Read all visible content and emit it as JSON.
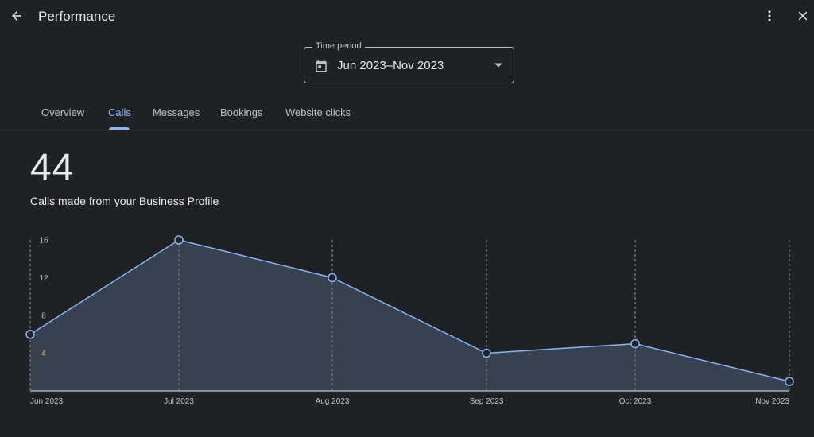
{
  "header": {
    "title": "Performance",
    "back_icon": "arrow-back-icon",
    "more_icon": "more-vert-icon",
    "close_icon": "close-icon"
  },
  "time_period": {
    "label": "Time period",
    "value": "Jun 2023–Nov 2023",
    "icon": "calendar-icon"
  },
  "tabs": [
    {
      "label": "Overview",
      "active": false
    },
    {
      "label": "Calls",
      "active": true
    },
    {
      "label": "Messages",
      "active": false
    },
    {
      "label": "Bookings",
      "active": false
    },
    {
      "label": "Website clicks",
      "active": false
    }
  ],
  "metric": {
    "value": "44",
    "description": "Calls made from your Business Profile"
  },
  "colors": {
    "background": "#202124",
    "accent": "#8ab4f8",
    "area_fill": "#3c4657"
  },
  "chart_data": {
    "type": "area",
    "categories": [
      "Jun 2023",
      "Jul 2023",
      "Aug 2023",
      "Sep 2023",
      "Oct 2023",
      "Nov 2023"
    ],
    "values": [
      6,
      16,
      12,
      4,
      5,
      1
    ],
    "yticks": [
      "4",
      "8",
      "12",
      "16"
    ],
    "ylim": [
      0,
      16
    ],
    "highlighted_tick": "4",
    "grid": "vertical-dashed"
  }
}
